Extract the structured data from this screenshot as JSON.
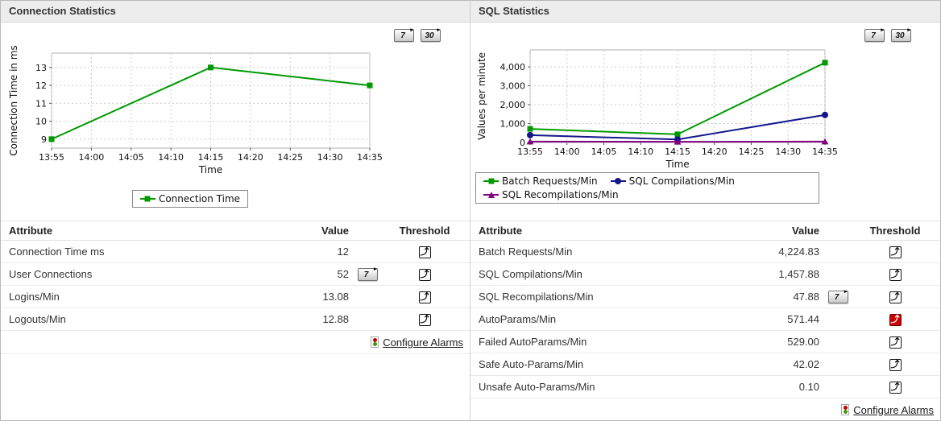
{
  "panels": [
    {
      "title": "Connection Statistics",
      "range_buttons": [
        "7",
        "30"
      ],
      "table": {
        "headers": [
          "Attribute",
          "Value",
          "Threshold"
        ],
        "rows": [
          {
            "attribute": "Connection Time ms",
            "value": "12",
            "range_button": "",
            "alarm": false
          },
          {
            "attribute": "User Connections",
            "value": "52",
            "range_button": "7",
            "alarm": false
          },
          {
            "attribute": "Logins/Min",
            "value": "13.08",
            "range_button": "",
            "alarm": false
          },
          {
            "attribute": "Logouts/Min",
            "value": "12.88",
            "range_button": "",
            "alarm": false
          }
        ],
        "configure_alarms_label": "Configure Alarms"
      }
    },
    {
      "title": "SQL Statistics",
      "range_buttons": [
        "7",
        "30"
      ],
      "table": {
        "headers": [
          "Attribute",
          "Value",
          "Threshold"
        ],
        "rows": [
          {
            "attribute": "Batch Requests/Min",
            "value": "4,224.83",
            "range_button": "",
            "alarm": false
          },
          {
            "attribute": "SQL Compilations/Min",
            "value": "1,457.88",
            "range_button": "",
            "alarm": false
          },
          {
            "attribute": "SQL Recompilations/Min",
            "value": "47.88",
            "range_button": "7",
            "alarm": false
          },
          {
            "attribute": "AutoParams/Min",
            "value": "571.44",
            "range_button": "",
            "alarm": true
          },
          {
            "attribute": "Failed AutoParams/Min",
            "value": "529.00",
            "range_button": "",
            "alarm": false
          },
          {
            "attribute": "Safe Auto-Params/Min",
            "value": "42.02",
            "range_button": "",
            "alarm": false
          },
          {
            "attribute": "Unsafe Auto-Params/Min",
            "value": "0.10",
            "range_button": "",
            "alarm": false
          }
        ],
        "configure_alarms_label": "Configure Alarms"
      }
    }
  ],
  "chart_data": [
    {
      "type": "line",
      "title": "",
      "xlabel": "Time",
      "ylabel": "Connection Time in ms",
      "x_ticks": [
        "13:55",
        "14:00",
        "14:05",
        "14:10",
        "14:15",
        "14:20",
        "14:25",
        "14:30",
        "14:35"
      ],
      "y_ticks": [
        9,
        10,
        11,
        12,
        13
      ],
      "y_tick_labels": [
        "9",
        "10",
        "11",
        "12",
        "13"
      ],
      "ylim": [
        8.5,
        13.8
      ],
      "grid": true,
      "legend_position": "bottom",
      "series": [
        {
          "name": "Connection Time",
          "color": "#009a00",
          "marker": "square",
          "x": [
            "13:55",
            "14:15",
            "14:35"
          ],
          "values": [
            9,
            13,
            12
          ]
        }
      ]
    },
    {
      "type": "line",
      "title": "",
      "xlabel": "Time",
      "ylabel": "Values per minute",
      "x_ticks": [
        "13:55",
        "14:00",
        "14:05",
        "14:10",
        "14:15",
        "14:20",
        "14:25",
        "14:30",
        "14:35"
      ],
      "y_ticks": [
        0,
        1000,
        2000,
        3000,
        4000
      ],
      "y_tick_labels": [
        "0",
        "1,000",
        "2,000",
        "3,000",
        "4,000"
      ],
      "ylim": [
        0,
        4900
      ],
      "grid": true,
      "legend_position": "bottom",
      "series": [
        {
          "name": "Batch Requests/Min",
          "color": "#009a00",
          "marker": "square",
          "x": [
            "13:55",
            "14:15",
            "14:35"
          ],
          "values": [
            720,
            430,
            4224.83
          ]
        },
        {
          "name": "SQL Compilations/Min",
          "color": "#16168c",
          "marker": "circle",
          "x": [
            "13:55",
            "14:15",
            "14:35"
          ],
          "values": [
            390,
            160,
            1457.88
          ]
        },
        {
          "name": "SQL Recompilations/Min",
          "color": "#800080",
          "marker": "triangle",
          "x": [
            "13:55",
            "14:15",
            "14:35"
          ],
          "values": [
            50,
            35,
            47.88
          ]
        }
      ]
    }
  ],
  "colors": {
    "series_green": "#009a00",
    "series_navy": "#16168c",
    "series_purple": "#800080",
    "alarm_red": "#cc0000"
  }
}
